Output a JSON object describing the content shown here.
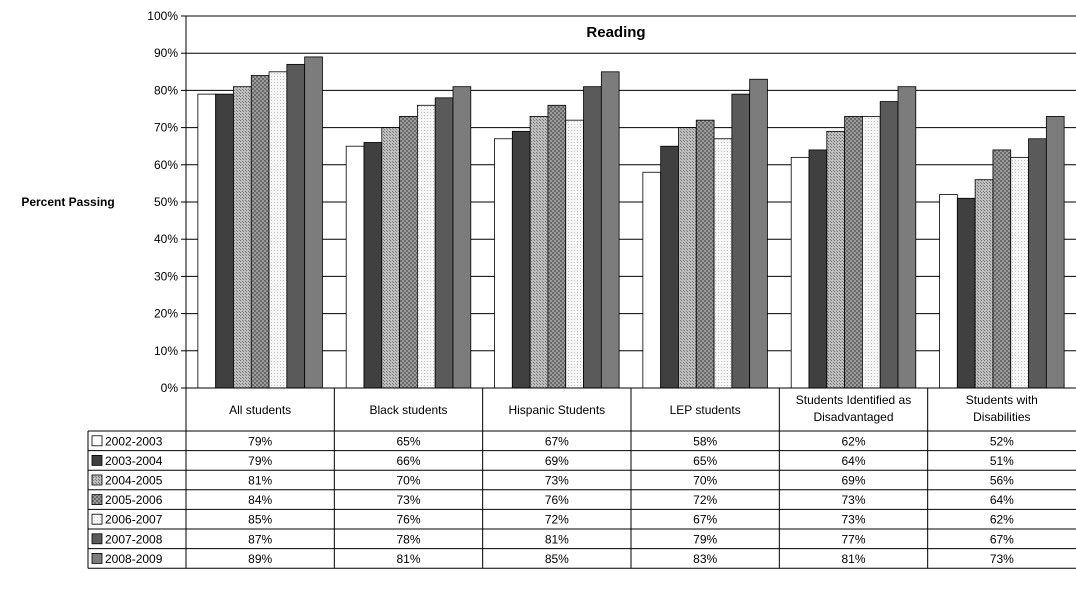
{
  "chart_data": {
    "type": "bar",
    "title": "Reading",
    "ylabel": "Percent Passing",
    "ylim": [
      0,
      100
    ],
    "y_ticks": [
      "0%",
      "10%",
      "20%",
      "30%",
      "40%",
      "50%",
      "60%",
      "70%",
      "80%",
      "90%",
      "100%"
    ],
    "grid": true,
    "legend": "data-table",
    "categories": [
      [
        "All students"
      ],
      [
        "Black students"
      ],
      [
        "Hispanic Students"
      ],
      [
        "LEP students"
      ],
      [
        "Students Identified as",
        "Disadvantaged"
      ],
      [
        "Students with",
        "Disabilities"
      ]
    ],
    "series": [
      {
        "name": "2002-2003",
        "fill": "#ffffff",
        "values": [
          79,
          65,
          67,
          58,
          62,
          52
        ],
        "labels": [
          "79%",
          "65%",
          "67%",
          "58%",
          "62%",
          "52%"
        ]
      },
      {
        "name": "2003-2004",
        "fill": "#404040",
        "values": [
          79,
          66,
          69,
          65,
          64,
          51
        ],
        "labels": [
          "79%",
          "66%",
          "69%",
          "65%",
          "64%",
          "51%"
        ]
      },
      {
        "name": "2004-2005",
        "fill": "#a8a8a8",
        "values": [
          81,
          70,
          73,
          70,
          69,
          56
        ],
        "labels": [
          "81%",
          "70%",
          "73%",
          "70%",
          "69%",
          "56%"
        ]
      },
      {
        "name": "2005-2006",
        "fill": "#8c8c8c",
        "values": [
          84,
          73,
          76,
          72,
          73,
          64
        ],
        "labels": [
          "84%",
          "73%",
          "76%",
          "72%",
          "73%",
          "64%"
        ]
      },
      {
        "name": "2006-2007",
        "fill": "#eeeeee",
        "values": [
          85,
          76,
          72,
          67,
          73,
          62
        ],
        "labels": [
          "85%",
          "76%",
          "72%",
          "67%",
          "73%",
          "62%"
        ]
      },
      {
        "name": "2007-2008",
        "fill": "#5a5a5a",
        "values": [
          87,
          78,
          81,
          79,
          77,
          67
        ],
        "labels": [
          "87%",
          "78%",
          "81%",
          "79%",
          "77%",
          "67%"
        ]
      },
      {
        "name": "2008-2009",
        "fill": "#7c7c7c",
        "values": [
          89,
          81,
          85,
          83,
          81,
          73
        ],
        "labels": [
          "89%",
          "81%",
          "85%",
          "83%",
          "81%",
          "73%"
        ]
      }
    ]
  }
}
